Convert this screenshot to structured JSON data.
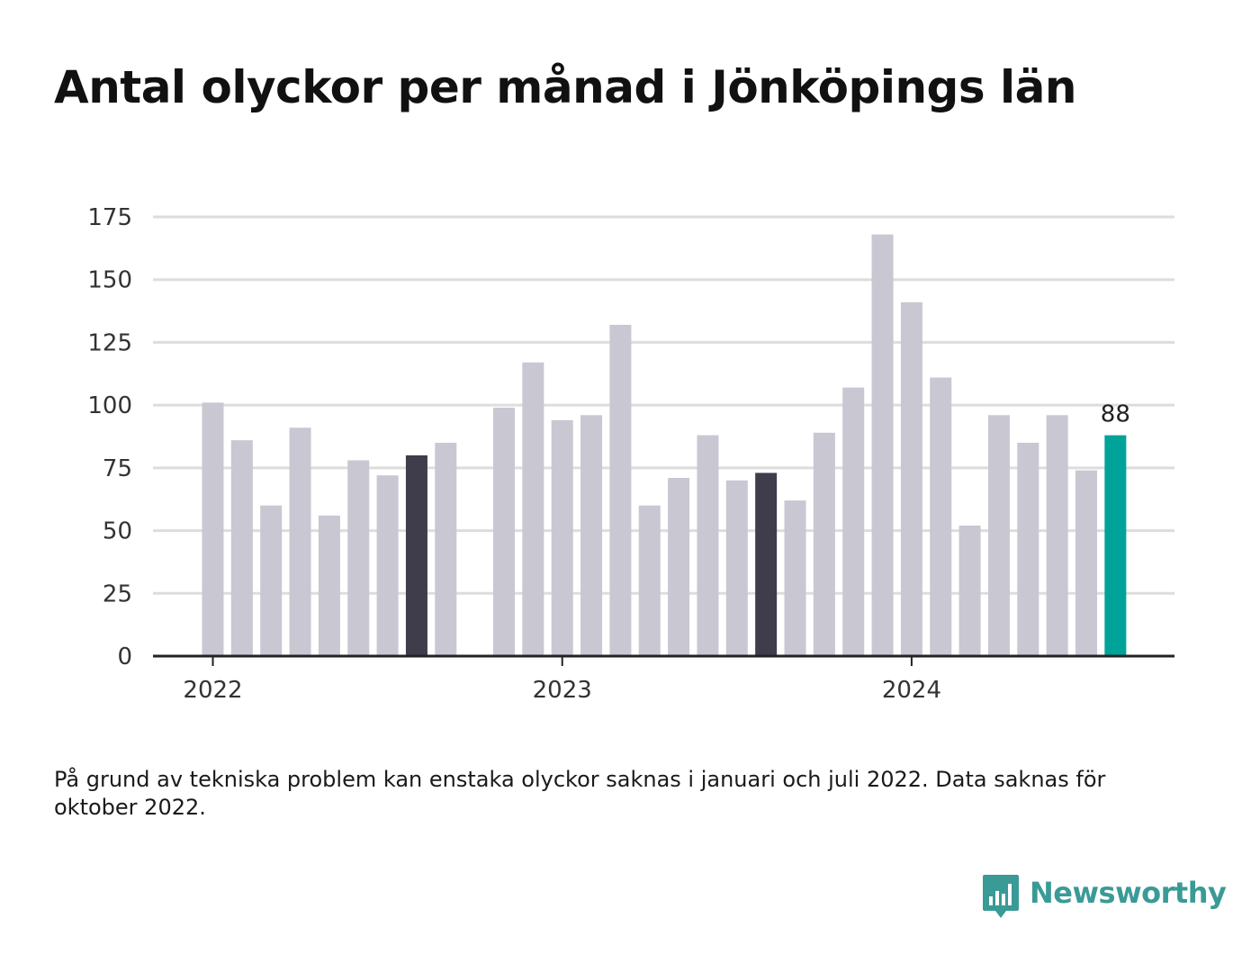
{
  "header": {
    "title": "Antal olyckor per månad i Jönköpings län"
  },
  "chart_data": {
    "type": "bar",
    "title": "Antal olyckor per månad i Jönköpings län",
    "xlabel": "",
    "ylabel": "",
    "ylim": [
      0,
      175
    ],
    "yticks": [
      "0",
      "25",
      "50",
      "75",
      "100",
      "125",
      "150",
      "175"
    ],
    "xticks": [
      "2022",
      "2023",
      "2024"
    ],
    "grid": "horizontal",
    "categories": [
      "2022-01",
      "2022-02",
      "2022-03",
      "2022-04",
      "2022-05",
      "2022-06",
      "2022-07",
      "2022-08",
      "2022-09",
      "2022-10",
      "2022-11",
      "2022-12",
      "2023-01",
      "2023-02",
      "2023-03",
      "2023-04",
      "2023-05",
      "2023-06",
      "2023-07",
      "2023-08",
      "2023-09",
      "2023-10",
      "2023-11",
      "2023-12",
      "2024-01",
      "2024-02",
      "2024-03",
      "2024-04",
      "2024-05",
      "2024-06",
      "2024-07",
      "2024-08"
    ],
    "values": [
      101,
      86,
      60,
      91,
      56,
      78,
      72,
      80,
      85,
      null,
      99,
      117,
      94,
      96,
      132,
      60,
      71,
      88,
      70,
      73,
      62,
      89,
      107,
      168,
      141,
      111,
      52,
      96,
      85,
      96,
      74,
      88
    ],
    "highlight_label": "88",
    "colors": {
      "default": "#c8c7d2",
      "same_month_prior_years": "#3f3d4b",
      "latest": "#00a39a",
      "grid": "#dddddd",
      "axis": "#222222"
    }
  },
  "footnote": {
    "text": "På grund av tekniska problem kan enstaka olyckor saknas i januari och juli 2022. Data saknas för oktober 2022."
  },
  "logo": {
    "text": "Newsworthy",
    "icon": "bar-chart-speech-bubble-icon",
    "color": "#3a9a96"
  }
}
